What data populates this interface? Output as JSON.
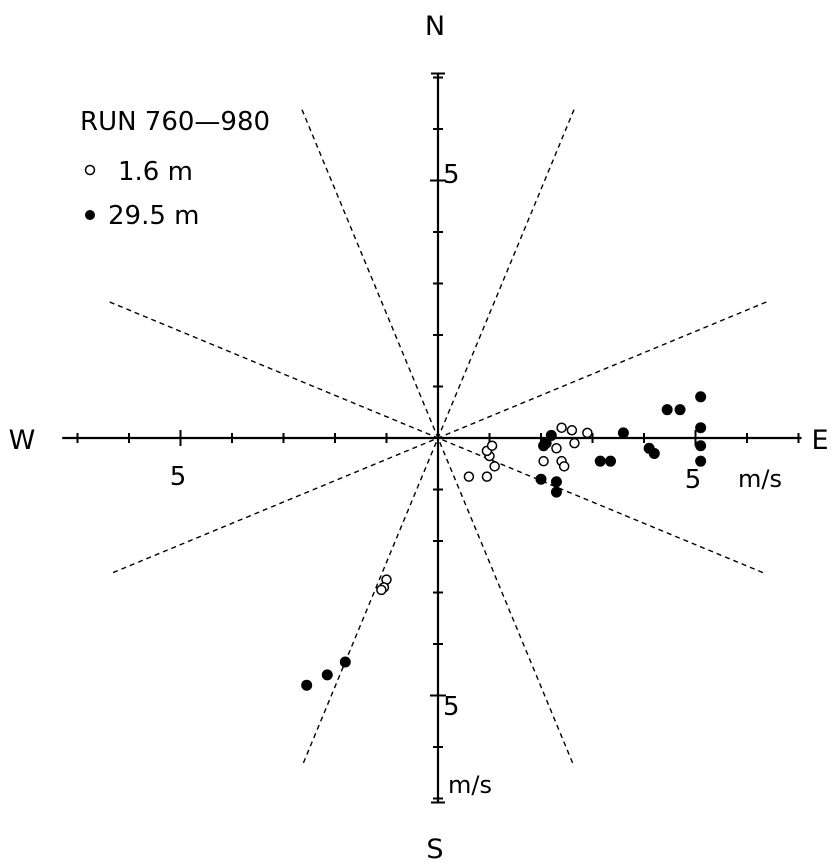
{
  "chart_data": {
    "type": "scatter",
    "title": "RUN 760—980",
    "compass": {
      "north": "N",
      "south": "S",
      "east": "E",
      "west": "W"
    },
    "tick_labels": {
      "east": "5",
      "west": "5",
      "north": "5",
      "south": "5"
    },
    "units": {
      "x": "m/s",
      "y": "m/s"
    },
    "xlim": [
      -7.2,
      7.0
    ],
    "ylim": [
      -7.0,
      7.0
    ],
    "tick_interval": 1,
    "labeled_tick": 5,
    "sector_lines_deg": [
      22.5,
      67.5,
      112.5,
      157.5
    ],
    "legend_position": "top-left",
    "series": [
      {
        "name": "1.6 m",
        "marker": "open-circle",
        "points": [
          [
            1.0,
            -0.35
          ],
          [
            0.95,
            -0.25
          ],
          [
            1.05,
            -0.15
          ],
          [
            1.1,
            -0.55
          ],
          [
            0.6,
            -0.75
          ],
          [
            0.95,
            -0.75
          ],
          [
            2.4,
            0.2
          ],
          [
            2.6,
            0.15
          ],
          [
            2.9,
            0.1
          ],
          [
            2.65,
            -0.1
          ],
          [
            2.3,
            -0.2
          ],
          [
            2.05,
            -0.45
          ],
          [
            2.4,
            -0.45
          ],
          [
            2.45,
            -0.55
          ],
          [
            -1.0,
            -2.75
          ],
          [
            -1.05,
            -2.9
          ],
          [
            -1.1,
            -2.95
          ]
        ]
      },
      {
        "name": "29.5 m",
        "marker": "filled-circle",
        "points": [
          [
            2.1,
            -0.1
          ],
          [
            2.05,
            -0.15
          ],
          [
            2.2,
            0.05
          ],
          [
            2.0,
            -0.8
          ],
          [
            2.3,
            -0.85
          ],
          [
            2.3,
            -1.05
          ],
          [
            3.15,
            -0.45
          ],
          [
            3.35,
            -0.45
          ],
          [
            3.6,
            0.1
          ],
          [
            4.1,
            -0.2
          ],
          [
            4.2,
            -0.3
          ],
          [
            4.45,
            0.55
          ],
          [
            4.7,
            0.55
          ],
          [
            5.1,
            0.8
          ],
          [
            5.1,
            0.2
          ],
          [
            5.1,
            -0.15
          ],
          [
            5.1,
            -0.45
          ],
          [
            -1.8,
            -4.35
          ],
          [
            -2.15,
            -4.6
          ],
          [
            -2.55,
            -4.8
          ]
        ]
      }
    ]
  }
}
